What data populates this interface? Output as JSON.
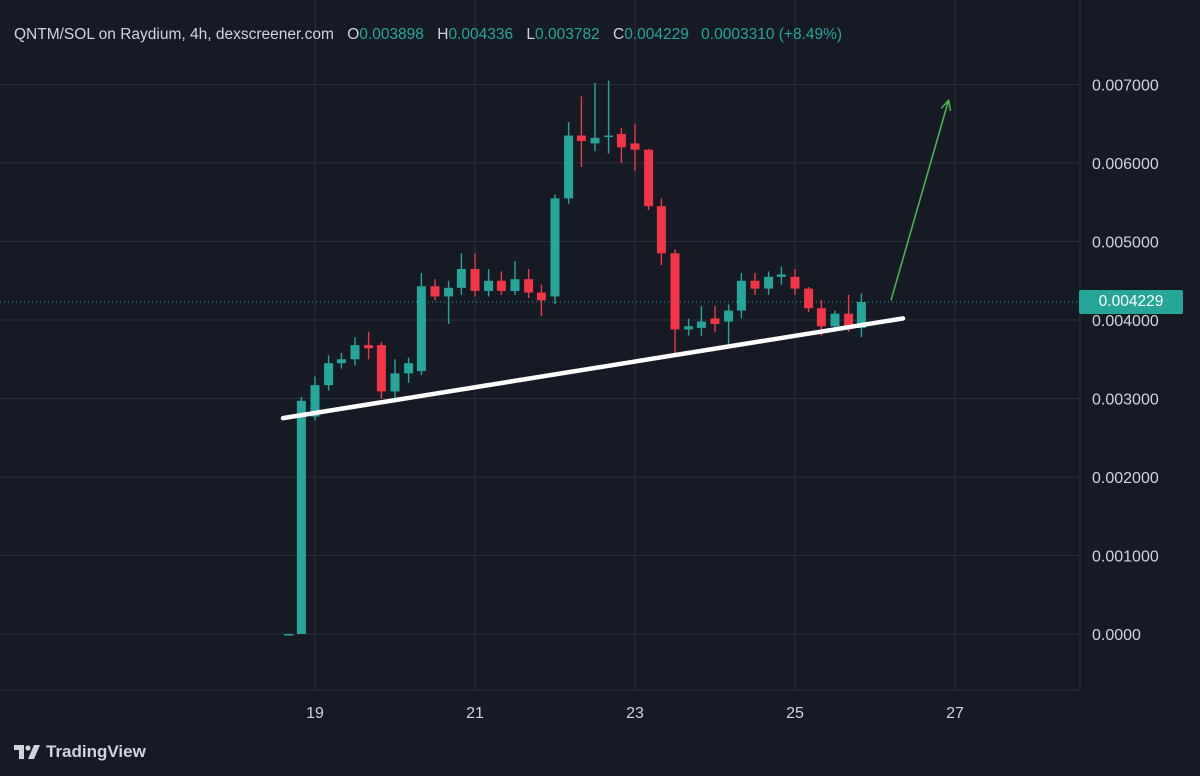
{
  "header": {
    "pair_label": "QNTM/SOL on Raydium, 4h, dexscreener.com",
    "open_key": "O",
    "open_value": "0.003898",
    "high_key": "H",
    "high_value": "0.004336",
    "low_key": "L",
    "low_value": "0.003782",
    "close_key": "C",
    "close_value": "0.004229",
    "change": "0.0003310 (+8.49%)"
  },
  "last_price_label": "0.004229",
  "brand": {
    "name": "TradingView",
    "icon": "tradingview-logo-icon"
  },
  "colors": {
    "background": "#161a25",
    "grid": "#2a2e39",
    "up": "#26a69a",
    "down": "#f23645",
    "trendline": "#ffffff",
    "arrow": "#4caf50",
    "text": "#b2b5be"
  },
  "chart_data": {
    "type": "candlestick",
    "y_axis_ticks": [
      "0.007000",
      "0.006000",
      "0.005000",
      "0.004000",
      "0.003000",
      "0.002000",
      "0.001000",
      "0.0000"
    ],
    "x_axis_ticks": [
      "19",
      "21",
      "23",
      "25",
      "27"
    ],
    "x_axis_tick_days": [
      19,
      21,
      23,
      25,
      27
    ],
    "ylim": [
      0,
      0.0075
    ],
    "xlim_days": [
      18.0,
      28.5
    ],
    "last_price": 0.004229,
    "candle_interval_hours": 4,
    "candles": [
      {
        "d": 18.67,
        "o": 0.0,
        "h": 0.0,
        "l": 0.0,
        "c": 0.0
      },
      {
        "d": 18.83,
        "o": 0.0,
        "h": 0.00302,
        "l": 0.0,
        "c": 0.00297
      },
      {
        "d": 19.0,
        "o": 0.00277,
        "h": 0.00328,
        "l": 0.00272,
        "c": 0.00317
      },
      {
        "d": 19.17,
        "o": 0.00317,
        "h": 0.00355,
        "l": 0.0031,
        "c": 0.00345
      },
      {
        "d": 19.33,
        "o": 0.00345,
        "h": 0.00358,
        "l": 0.00338,
        "c": 0.0035
      },
      {
        "d": 19.5,
        "o": 0.0035,
        "h": 0.00378,
        "l": 0.00342,
        "c": 0.00368
      },
      {
        "d": 19.67,
        "o": 0.00368,
        "h": 0.00385,
        "l": 0.0035,
        "c": 0.00364
      },
      {
        "d": 19.83,
        "o": 0.00368,
        "h": 0.00372,
        "l": 0.003,
        "c": 0.00309
      },
      {
        "d": 20.0,
        "o": 0.00309,
        "h": 0.0035,
        "l": 0.00295,
        "c": 0.00332
      },
      {
        "d": 20.17,
        "o": 0.00332,
        "h": 0.00352,
        "l": 0.0032,
        "c": 0.00345
      },
      {
        "d": 20.33,
        "o": 0.00335,
        "h": 0.0046,
        "l": 0.0033,
        "c": 0.00443
      },
      {
        "d": 20.5,
        "o": 0.00443,
        "h": 0.00452,
        "l": 0.00425,
        "c": 0.0043
      },
      {
        "d": 20.67,
        "o": 0.0043,
        "h": 0.0045,
        "l": 0.00395,
        "c": 0.00441
      },
      {
        "d": 20.83,
        "o": 0.00441,
        "h": 0.00485,
        "l": 0.00432,
        "c": 0.00465
      },
      {
        "d": 21.0,
        "o": 0.00465,
        "h": 0.00485,
        "l": 0.0043,
        "c": 0.00437
      },
      {
        "d": 21.17,
        "o": 0.00437,
        "h": 0.00465,
        "l": 0.0043,
        "c": 0.0045
      },
      {
        "d": 21.33,
        "o": 0.0045,
        "h": 0.00462,
        "l": 0.00432,
        "c": 0.00437
      },
      {
        "d": 21.5,
        "o": 0.00437,
        "h": 0.00475,
        "l": 0.00432,
        "c": 0.00452
      },
      {
        "d": 21.67,
        "o": 0.00452,
        "h": 0.00465,
        "l": 0.00428,
        "c": 0.00435
      },
      {
        "d": 21.83,
        "o": 0.00435,
        "h": 0.00445,
        "l": 0.00405,
        "c": 0.00425
      },
      {
        "d": 22.0,
        "o": 0.0043,
        "h": 0.0056,
        "l": 0.0042,
        "c": 0.00555
      },
      {
        "d": 22.17,
        "o": 0.00555,
        "h": 0.00652,
        "l": 0.00548,
        "c": 0.00635
      },
      {
        "d": 22.33,
        "o": 0.00635,
        "h": 0.00685,
        "l": 0.00595,
        "c": 0.00628
      },
      {
        "d": 22.5,
        "o": 0.00625,
        "h": 0.00702,
        "l": 0.00615,
        "c": 0.00632
      },
      {
        "d": 22.67,
        "o": 0.00634,
        "h": 0.00705,
        "l": 0.00612,
        "c": 0.00635
      },
      {
        "d": 22.83,
        "o": 0.00637,
        "h": 0.00645,
        "l": 0.006,
        "c": 0.0062
      },
      {
        "d": 23.0,
        "o": 0.00625,
        "h": 0.0065,
        "l": 0.0059,
        "c": 0.00617
      },
      {
        "d": 23.17,
        "o": 0.00617,
        "h": 0.00618,
        "l": 0.0054,
        "c": 0.00545
      },
      {
        "d": 23.33,
        "o": 0.00545,
        "h": 0.00555,
        "l": 0.0047,
        "c": 0.00485
      },
      {
        "d": 23.5,
        "o": 0.00485,
        "h": 0.0049,
        "l": 0.00355,
        "c": 0.00388
      },
      {
        "d": 23.67,
        "o": 0.00388,
        "h": 0.00402,
        "l": 0.0038,
        "c": 0.00392
      },
      {
        "d": 23.83,
        "o": 0.0039,
        "h": 0.00418,
        "l": 0.0038,
        "c": 0.00398
      },
      {
        "d": 24.0,
        "o": 0.00402,
        "h": 0.00418,
        "l": 0.00385,
        "c": 0.00395
      },
      {
        "d": 24.17,
        "o": 0.00398,
        "h": 0.0042,
        "l": 0.00365,
        "c": 0.00412
      },
      {
        "d": 24.33,
        "o": 0.00412,
        "h": 0.0046,
        "l": 0.00402,
        "c": 0.0045
      },
      {
        "d": 24.5,
        "o": 0.0045,
        "h": 0.0046,
        "l": 0.00432,
        "c": 0.0044
      },
      {
        "d": 24.67,
        "o": 0.0044,
        "h": 0.00462,
        "l": 0.00432,
        "c": 0.00455
      },
      {
        "d": 24.83,
        "o": 0.00455,
        "h": 0.00468,
        "l": 0.00445,
        "c": 0.00458
      },
      {
        "d": 25.0,
        "o": 0.00455,
        "h": 0.00465,
        "l": 0.00432,
        "c": 0.0044
      },
      {
        "d": 25.17,
        "o": 0.0044,
        "h": 0.00442,
        "l": 0.0041,
        "c": 0.00415
      },
      {
        "d": 25.33,
        "o": 0.00415,
        "h": 0.00425,
        "l": 0.0038,
        "c": 0.00392
      },
      {
        "d": 25.5,
        "o": 0.00392,
        "h": 0.00412,
        "l": 0.00385,
        "c": 0.00408
      },
      {
        "d": 25.67,
        "o": 0.00408,
        "h": 0.00432,
        "l": 0.00385,
        "c": 0.0039
      },
      {
        "d": 25.83,
        "o": 0.003898,
        "h": 0.004336,
        "l": 0.003782,
        "c": 0.004229
      }
    ],
    "trendline": {
      "from": {
        "d": 18.6,
        "v": 0.00275
      },
      "to": {
        "d": 26.35,
        "v": 0.00402
      }
    },
    "arrow": {
      "from": {
        "d": 26.2,
        "v": 0.00425
      },
      "to": {
        "d": 26.92,
        "v": 0.0068
      }
    }
  }
}
